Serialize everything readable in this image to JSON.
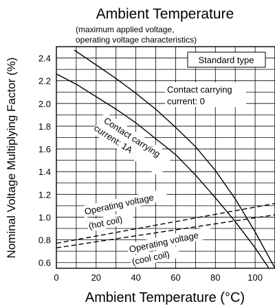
{
  "chart_data": {
    "type": "line",
    "title": "Ambient Temperature",
    "subtitle_lines": [
      "(maximum applied voltage,",
      "operating voltage characteristics)"
    ],
    "xlabel": "Ambient Temperature (°C)",
    "ylabel": "Nominal Voltage Multiplying Factor (%)",
    "xlim": [
      0,
      110
    ],
    "ylim": [
      0.55,
      2.5
    ],
    "x_ticks": [
      0,
      20,
      40,
      60,
      80,
      100
    ],
    "x_tick_labels": [
      "0",
      "20",
      "40",
      "60",
      "80",
      "100"
    ],
    "y_ticks": [
      0.6,
      0.8,
      1.0,
      1.2,
      1.4,
      1.6,
      1.8,
      2.0,
      2.2,
      2.4
    ],
    "y_tick_labels": [
      "0.6",
      "0.8",
      "1.0",
      "1.2",
      "1.4",
      "1.6",
      "1.8",
      "2.0",
      "2.2",
      "2.4"
    ],
    "grid_x_step": 10,
    "grid_y_step": 0.1,
    "grid": true,
    "box_label": "Standard type",
    "series": [
      {
        "name": "Contact carrying current: 0",
        "label_lines": [
          "Contact carrying",
          "current: 0"
        ],
        "style": "solid",
        "x": [
          9,
          20,
          30,
          40,
          50,
          60,
          70,
          80,
          90,
          100,
          110
        ],
        "y": [
          2.47,
          2.34,
          2.22,
          2.09,
          1.95,
          1.79,
          1.62,
          1.41,
          1.16,
          0.87,
          0.55
        ]
      },
      {
        "name": "Contact carrying current: 1A",
        "label_lines": [
          "Contact carrying",
          "current: 1A"
        ],
        "style": "solid",
        "x": [
          0,
          10,
          20,
          30,
          40,
          50,
          60,
          70,
          80,
          90,
          100,
          110
        ],
        "y": [
          2.26,
          2.17,
          2.06,
          1.95,
          1.83,
          1.69,
          1.55,
          1.37,
          1.17,
          0.96,
          0.73,
          0.47
        ]
      },
      {
        "name": "Operating voltage (hot coil)",
        "label_lines": [
          "Operating voltage",
          "(hot coil)"
        ],
        "style": "dashed",
        "x": [
          0,
          110
        ],
        "y": [
          0.77,
          1.12
        ]
      },
      {
        "name": "Operating voltage (cool coil)",
        "label_lines": [
          "Operating voltage",
          "(cool coil)"
        ],
        "style": "dashed",
        "x": [
          0,
          110
        ],
        "y": [
          0.73,
          1.02
        ]
      }
    ]
  }
}
